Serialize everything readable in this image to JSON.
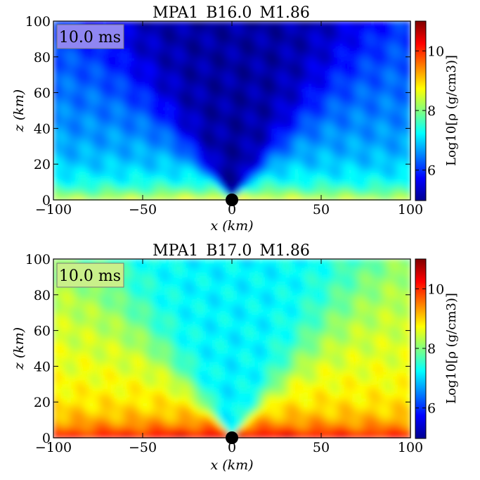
{
  "figure": {
    "panels": [
      {
        "title": "MPA1_B16.0_M1.86",
        "time_label": "10.0 ms",
        "time_label_bg": "#8f86f2",
        "xlabel": "x (km)",
        "ylabel": "z (km)",
        "colorbar_label": "Log10[ρ (g/cm3)]"
      },
      {
        "title": "MPA1_B17.0_M1.86",
        "time_label": "10.0 ms",
        "time_label_bg": "#c9f08a",
        "xlabel": "x (km)",
        "ylabel": "z (km)",
        "colorbar_label": "Log10[ρ (g/cm3)]"
      }
    ]
  },
  "chart_data": [
    {
      "type": "heatmap",
      "title": "MPA1_B16.0_M1.86",
      "annotation": "10.0 ms",
      "xlabel": "x (km)",
      "ylabel": "z (km)",
      "xlim": [
        -100,
        100
      ],
      "ylim": [
        0,
        100
      ],
      "xticks": [
        -100,
        -50,
        0,
        50,
        100
      ],
      "yticks": [
        0,
        20,
        40,
        60,
        80,
        100
      ],
      "colorbar": {
        "label": "Log10[ρ (g/cm3)]",
        "range": [
          5,
          11
        ],
        "ticks": [
          6,
          8,
          10
        ],
        "colormap": "jet"
      },
      "central_object": {
        "x": 0,
        "z": 0,
        "color": "#000000"
      },
      "density_description": "low-density outflow cone (~5-6) above higher density torus (~7-9) near equator",
      "base_levels": {
        "equator": 9.0,
        "lower_layer": 7.5,
        "upper_background": 6.3,
        "cone_interior": 5.2
      }
    },
    {
      "type": "heatmap",
      "title": "MPA1_B17.0_M1.86",
      "annotation": "10.0 ms",
      "xlabel": "x (km)",
      "ylabel": "z (km)",
      "xlim": [
        -100,
        100
      ],
      "ylim": [
        0,
        100
      ],
      "xticks": [
        -100,
        -50,
        0,
        50,
        100
      ],
      "yticks": [
        0,
        20,
        40,
        60,
        80,
        100
      ],
      "colorbar": {
        "label": "Log10[ρ (g/cm3)]",
        "range": [
          5,
          11
        ],
        "ticks": [
          6,
          8,
          10
        ],
        "colormap": "jet"
      },
      "central_object": {
        "x": 0,
        "z": 0,
        "color": "#000000"
      },
      "density_description": "dense torus (~10-11) near equator, ~8-9 envelope, ~7 funnel along axis",
      "base_levels": {
        "equator": 10.8,
        "lower_layer": 9.3,
        "upper_background": 8.4,
        "cone_interior": 7.2
      }
    }
  ]
}
